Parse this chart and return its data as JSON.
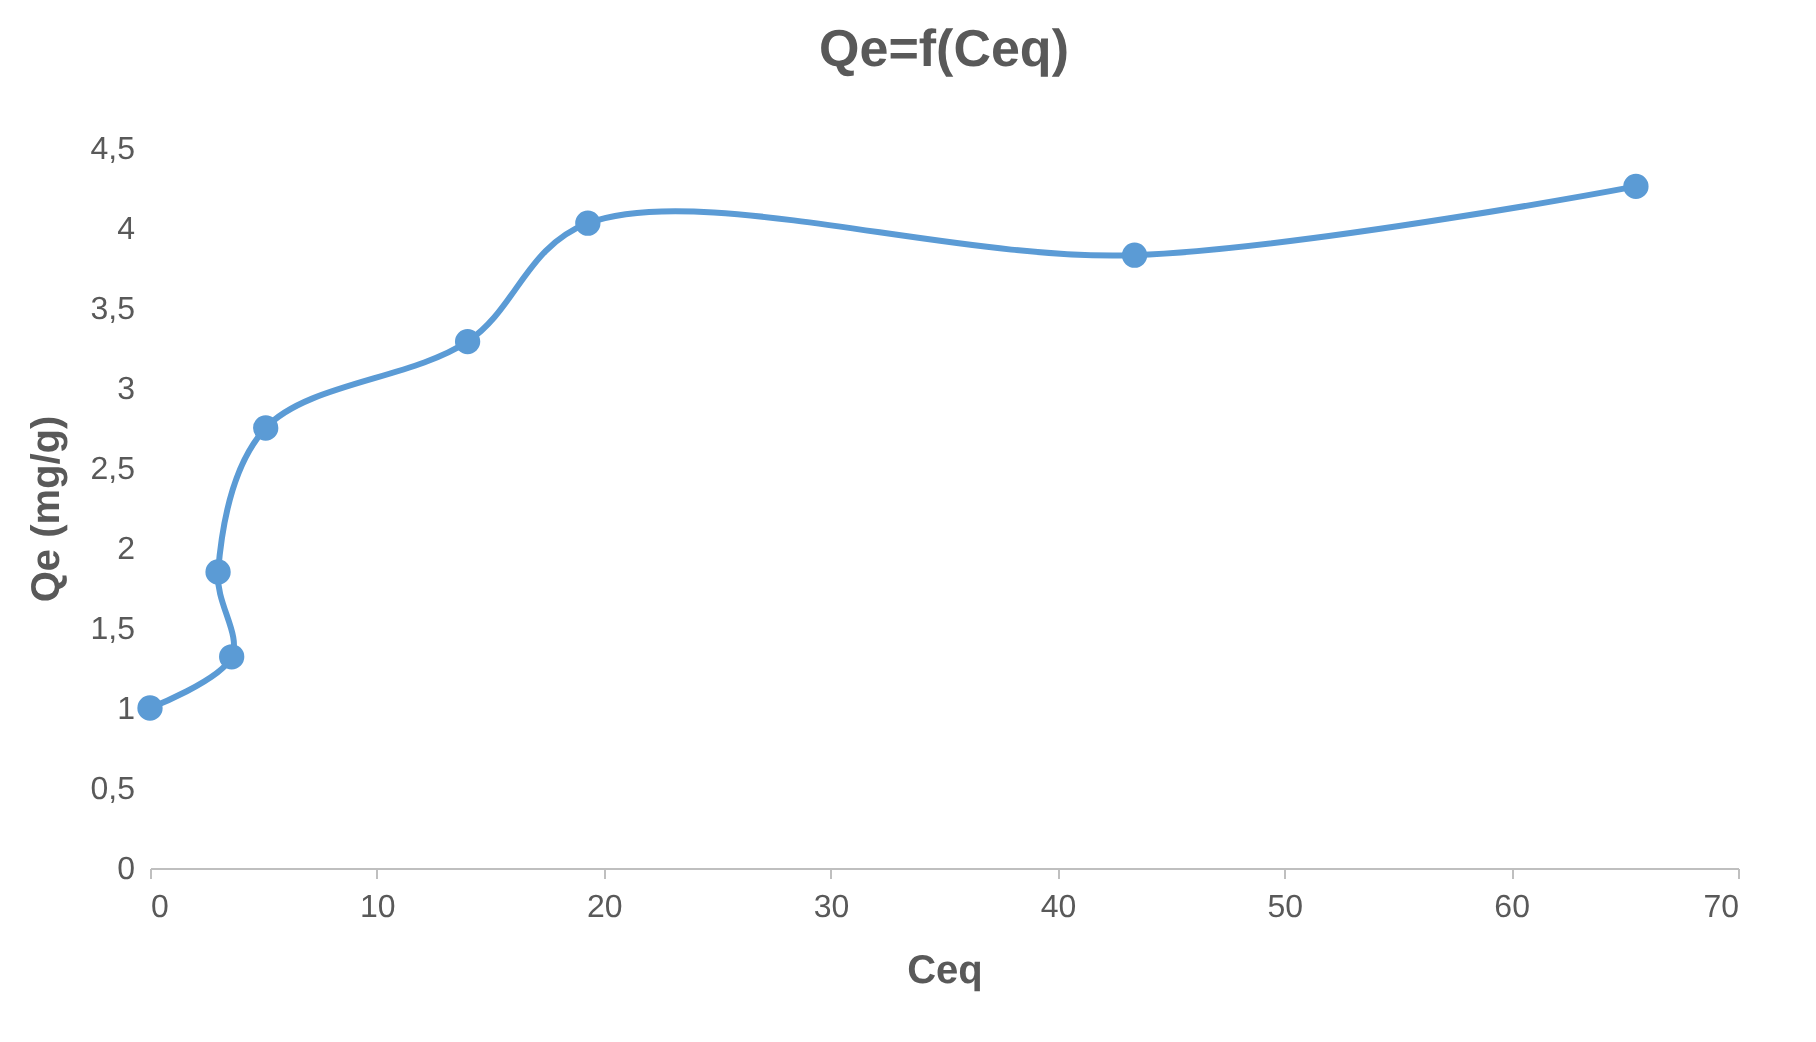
{
  "chart_data": {
    "type": "line",
    "title": "Qe=f(Ceq)",
    "xlabel": "Ceq",
    "ylabel": "Qe (mg/g)",
    "x": [
      0,
      3.6,
      3,
      5.1,
      14,
      19.3,
      43.4,
      65.5
    ],
    "series": [
      {
        "color": "#5b9bd5",
        "values": [
          1,
          1.32,
          1.85,
          2.75,
          3.29,
          4.03,
          3.83,
          4.26
        ]
      }
    ],
    "xlim": [
      0,
      70
    ],
    "xticks": [
      0,
      10,
      20,
      30,
      40,
      50,
      60,
      70
    ],
    "ylim": [
      0,
      4.5
    ],
    "yticks": [
      0,
      {
        "value": 0.5,
        "label": "0,5"
      },
      1,
      {
        "value": 1.5,
        "label": "1,5"
      },
      2,
      {
        "value": 2.5,
        "label": "2,5"
      },
      3,
      {
        "value": 3.5,
        "label": "3,5"
      },
      4,
      {
        "value": 4.5,
        "label": "4,5"
      }
    ],
    "marker": "circle",
    "grid": false
  }
}
